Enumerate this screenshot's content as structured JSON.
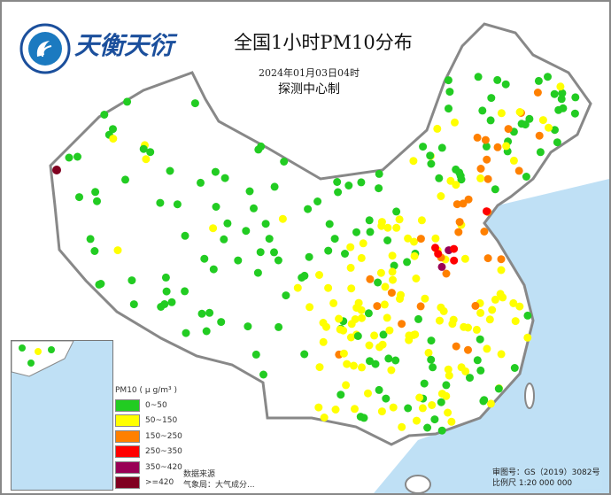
{
  "logo": {
    "text": "天衡天衍",
    "icon": "weather-center-seal-icon"
  },
  "header": {
    "title": "全国1小时PM10分布",
    "datetime": "2024年01月03日04时",
    "producer": "探测中心制"
  },
  "legend": {
    "title": "PM10 ( μ g/m³ )",
    "items": [
      {
        "label": "0~50",
        "color": "#22cc22"
      },
      {
        "label": "50~150",
        "color": "#ffff00"
      },
      {
        "label": "150~250",
        "color": "#ff8000"
      },
      {
        "label": "250~350",
        "color": "#ff0000"
      },
      {
        "label": "350~420",
        "color": "#990055"
      },
      {
        "label": ">=420",
        "color": "#800020"
      }
    ]
  },
  "source": {
    "line1": "数据来源",
    "line2": "气象局：大气成分..."
  },
  "approval": {
    "map_no": "审图号：GS（2019）3082号",
    "scale": "比例尺 1:20 000 000"
  },
  "colors": {
    "sea": "#bfe0f5",
    "border": "#888888",
    "land": "#ffffff"
  }
}
